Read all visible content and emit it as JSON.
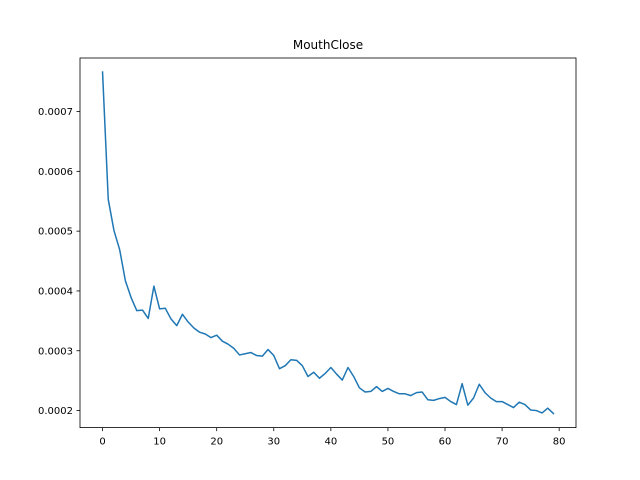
{
  "chart_data": {
    "type": "line",
    "title": "MouthClose",
    "xlabel": "",
    "ylabel": "",
    "xlim": [
      -3.95,
      82.95
    ],
    "ylim": [
      0.0001715,
      0.0007895
    ],
    "grid": false,
    "xticks": [
      0,
      10,
      20,
      30,
      40,
      50,
      60,
      70,
      80
    ],
    "xtick_labels": [
      "0",
      "10",
      "20",
      "30",
      "40",
      "50",
      "60",
      "70",
      "80"
    ],
    "yticks": [
      0.0002,
      0.0003,
      0.0004,
      0.0005,
      0.0006,
      0.0007
    ],
    "ytick_labels": [
      "0.0002",
      "0.0003",
      "0.0004",
      "0.0005",
      "0.0006",
      "0.0007"
    ],
    "series": [
      {
        "color": "#1f77b4",
        "x": [
          0,
          1,
          2,
          3,
          4,
          5,
          6,
          7,
          8,
          9,
          10,
          11,
          12,
          13,
          14,
          15,
          16,
          17,
          18,
          19,
          20,
          21,
          22,
          23,
          24,
          25,
          26,
          27,
          28,
          29,
          30,
          31,
          32,
          33,
          34,
          35,
          36,
          37,
          38,
          39,
          40,
          41,
          42,
          43,
          44,
          45,
          46,
          47,
          48,
          49,
          50,
          51,
          52,
          53,
          54,
          55,
          56,
          57,
          58,
          59,
          60,
          61,
          62,
          63,
          64,
          65,
          66,
          67,
          68,
          69,
          70,
          71,
          72,
          73,
          74,
          75,
          76,
          77,
          78,
          79
        ],
        "values": [
          0.000766,
          0.000553,
          0.000501,
          0.000469,
          0.000417,
          0.000389,
          0.000367,
          0.000368,
          0.000354,
          0.000408,
          0.00037,
          0.000371,
          0.000353,
          0.000342,
          0.000361,
          0.000348,
          0.000338,
          0.000331,
          0.000328,
          0.000322,
          0.000326,
          0.000316,
          0.000311,
          0.000304,
          0.000293,
          0.000295,
          0.000297,
          0.000292,
          0.000291,
          0.000302,
          0.000292,
          0.00027,
          0.000275,
          0.000285,
          0.000284,
          0.000275,
          0.000257,
          0.000264,
          0.000254,
          0.000262,
          0.000272,
          0.000261,
          0.000251,
          0.000272,
          0.000257,
          0.000238,
          0.000231,
          0.000232,
          0.00024,
          0.000232,
          0.000237,
          0.000232,
          0.000228,
          0.000228,
          0.000225,
          0.00023,
          0.000231,
          0.000218,
          0.000217,
          0.00022,
          0.000222,
          0.000215,
          0.00021,
          0.000245,
          0.000209,
          0.000221,
          0.000244,
          0.00023,
          0.000221,
          0.000215,
          0.000215,
          0.00021,
          0.000205,
          0.000214,
          0.00021,
          0.000201,
          0.0002,
          0.000196,
          0.000204,
          0.000195
        ]
      }
    ]
  }
}
